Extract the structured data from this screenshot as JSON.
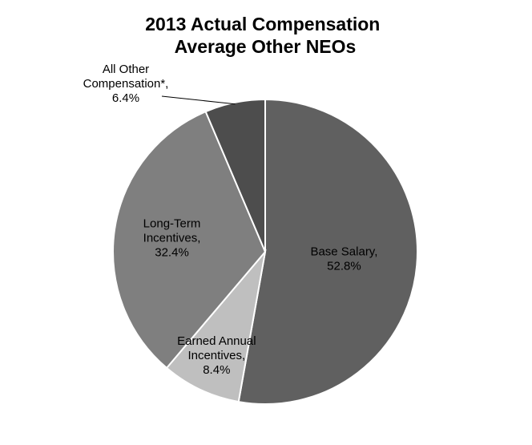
{
  "chart_data": {
    "type": "pie",
    "title_lines": [
      "2013 Actual Compensation",
      "Average Other NEOs"
    ],
    "slices": [
      {
        "name_lines": [
          "Base Salary,"
        ],
        "value": 52.8,
        "value_label": "52.8%",
        "color": "#606060"
      },
      {
        "name_lines": [
          "Earned Annual",
          "Incentives,"
        ],
        "value": 8.4,
        "value_label": "8.4%",
        "color": "#bfbfbf"
      },
      {
        "name_lines": [
          "Long-Term",
          "Incentives,"
        ],
        "value": 32.4,
        "value_label": "32.4%",
        "color": "#7f7f7f"
      },
      {
        "name_lines": [
          "All Other",
          "Compensation*,"
        ],
        "value": 6.4,
        "value_label": "6.4%",
        "color": "#4d4d4d"
      }
    ],
    "slice_border_color": "#ffffff",
    "leader_line_color": "#000000",
    "legend": "none"
  }
}
